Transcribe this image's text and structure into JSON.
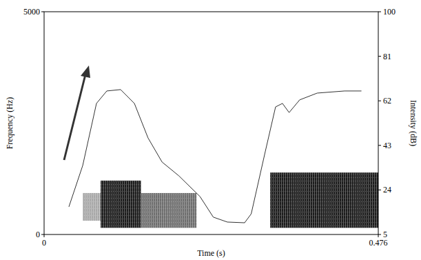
{
  "chart_data": {
    "type": "line",
    "xlabel": "Time (s)",
    "ylabel": "Frequency (Hz)",
    "y2label": "Intensity (dB)",
    "xlim": [
      0,
      0.476
    ],
    "xticks": [
      0,
      0.476
    ],
    "ylim": [
      0,
      5000
    ],
    "yticks": [
      0,
      5000
    ],
    "y2lim": [
      5,
      100
    ],
    "y2ticks": [
      5,
      24,
      43,
      62,
      81,
      100
    ],
    "x": [
      0.0353,
      0.055,
      0.0746,
      0.0893,
      0.109,
      0.1286,
      0.148,
      0.168,
      0.192,
      0.222,
      0.241,
      0.261,
      0.2856,
      0.295,
      0.315,
      0.3297,
      0.3395,
      0.349,
      0.364,
      0.389,
      0.428,
      0.452
    ],
    "series": [
      {
        "color": "#333333",
        "axis": "y2",
        "values": [
          16.8,
          34.4,
          60.9,
          66.2,
          66.8,
          60.9,
          46.2,
          35.9,
          30,
          21.2,
          12.4,
          10.3,
          10,
          13.8,
          40.3,
          59.4,
          60.9,
          57,
          62.4,
          65.3,
          66.2,
          66.2
        ]
      }
    ],
    "regions": [
      {
        "t0": 0.055,
        "t1": 0.0805,
        "f0": 310,
        "f1": 930,
        "color": "#a8a8a8"
      },
      {
        "t0": 0.0805,
        "t1": 0.138,
        "f0": 150,
        "f1": 1210,
        "color": "#1c1c1c"
      },
      {
        "t0": 0.138,
        "t1": 0.217,
        "f0": 150,
        "f1": 930,
        "color": "#6e6e6e"
      },
      {
        "t0": 0.322,
        "t1": 0.476,
        "f0": 150,
        "f1": 1390,
        "color": "#1c1c1c"
      }
    ]
  }
}
